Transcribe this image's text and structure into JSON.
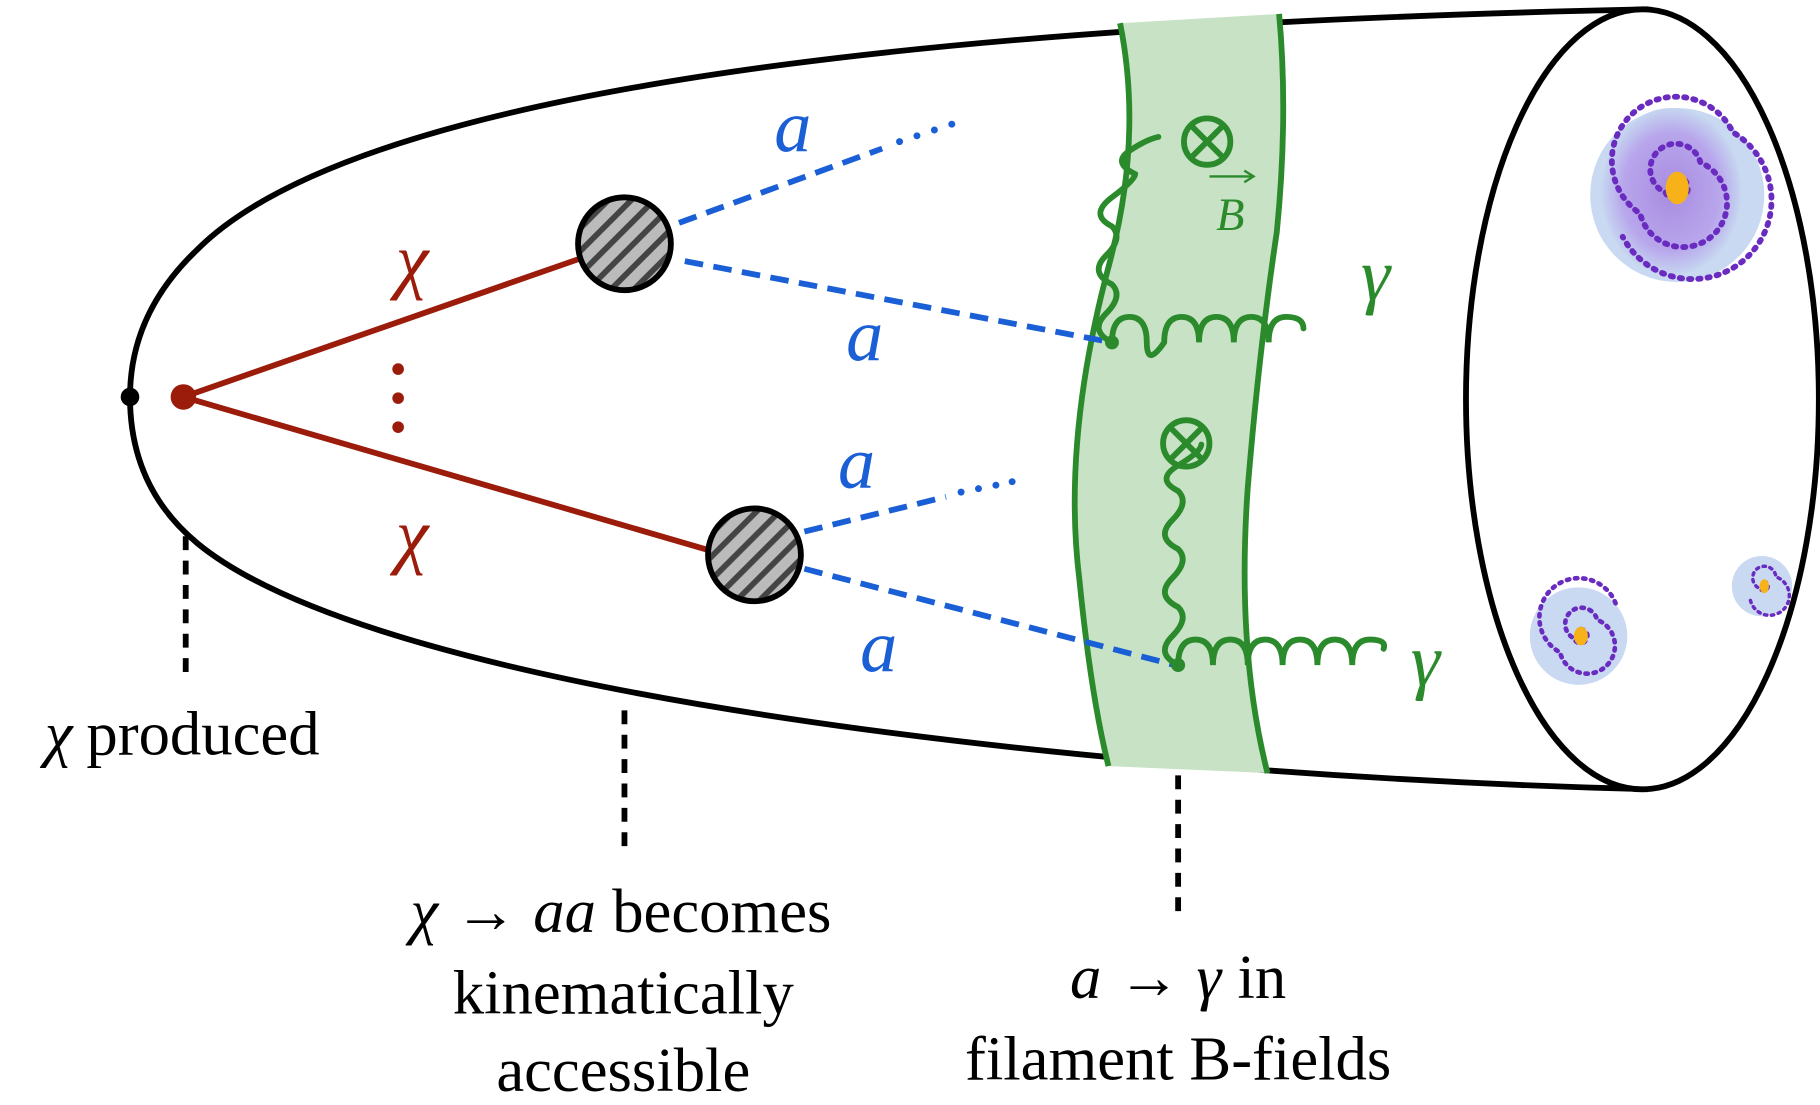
{
  "labels": {
    "chi": [
      "χ",
      "χ"
    ],
    "axion": [
      "a",
      "a",
      "a",
      "a"
    ],
    "photon": [
      "γ",
      "γ"
    ],
    "field": "B"
  },
  "captions": [
    {
      "lines": [
        [
          "χ",
          "produced"
        ]
      ]
    },
    {
      "lines": [
        [
          "χ",
          "→",
          "aa",
          "becomes"
        ],
        [
          "kinematically"
        ],
        [
          "accessible"
        ]
      ]
    },
    {
      "lines": [
        [
          "a",
          "→",
          "γ",
          "in"
        ],
        [
          "filament B-fields"
        ]
      ]
    }
  ]
}
